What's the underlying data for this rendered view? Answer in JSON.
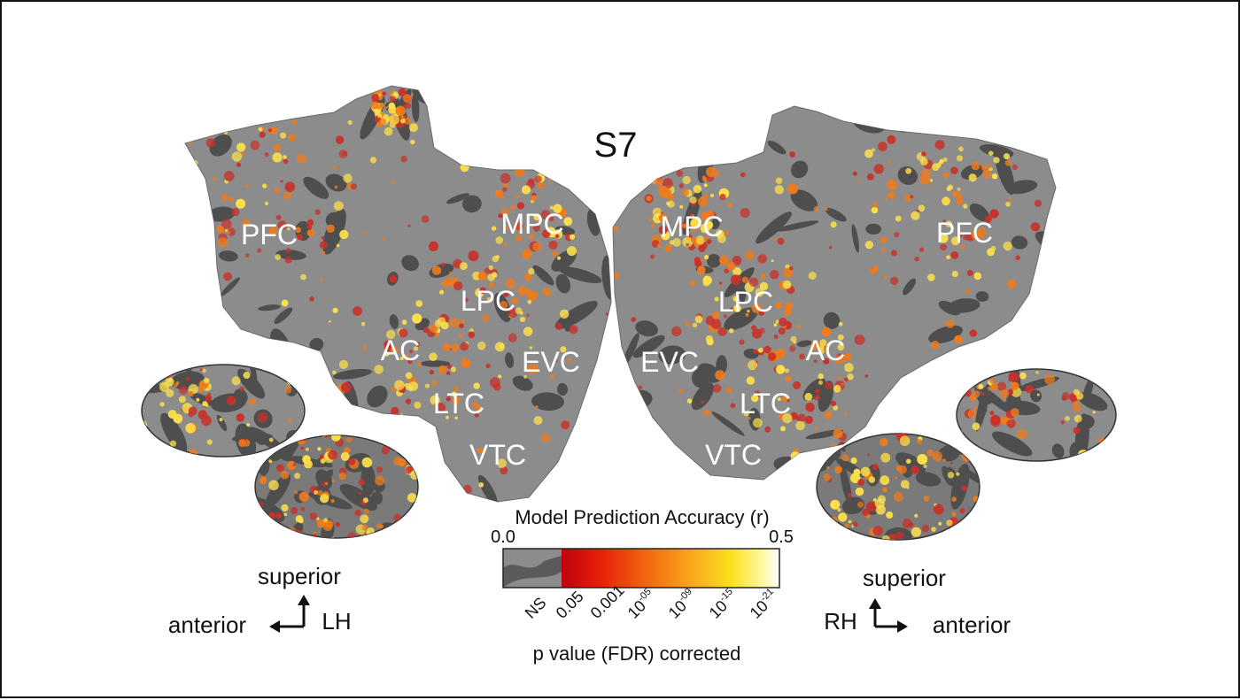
{
  "subject_label": "S7",
  "left_hemisphere": {
    "regions": [
      "PFC",
      "MPC",
      "LPC",
      "AC",
      "EVC",
      "LTC",
      "VTC"
    ],
    "orientation": {
      "vertical": "superior",
      "horizontal": "anterior",
      "hemi": "LH"
    }
  },
  "right_hemisphere": {
    "regions": [
      "MPC",
      "PFC",
      "LPC",
      "EVC",
      "AC",
      "LTC",
      "VTC"
    ],
    "orientation": {
      "vertical": "superior",
      "horizontal": "anterior",
      "hemi": "RH"
    }
  },
  "colorbar": {
    "title": "Model Prediction Accuracy (r)",
    "min_label": "0.0",
    "max_label": "0.5",
    "ticks": [
      "NS",
      "0.05",
      "0.001",
      "10",
      "10",
      "10",
      "10"
    ],
    "tick_exponents": [
      "",
      "",
      "",
      "-05",
      "-09",
      "-15",
      "-21"
    ],
    "xlabel": "p value (FDR) corrected",
    "gradient": [
      "#8a8a8a",
      "#c0000e",
      "#e8200a",
      "#f26a0e",
      "#f9a81c",
      "#fbe11e",
      "#fff6a0",
      "#ffffff"
    ]
  },
  "colors": {
    "cortex_light": "#8c8c8c",
    "cortex_dark": "#4e4e4e",
    "activation_low": "#c8322a",
    "activation_mid": "#f07a1a",
    "activation_high": "#fde04a"
  }
}
